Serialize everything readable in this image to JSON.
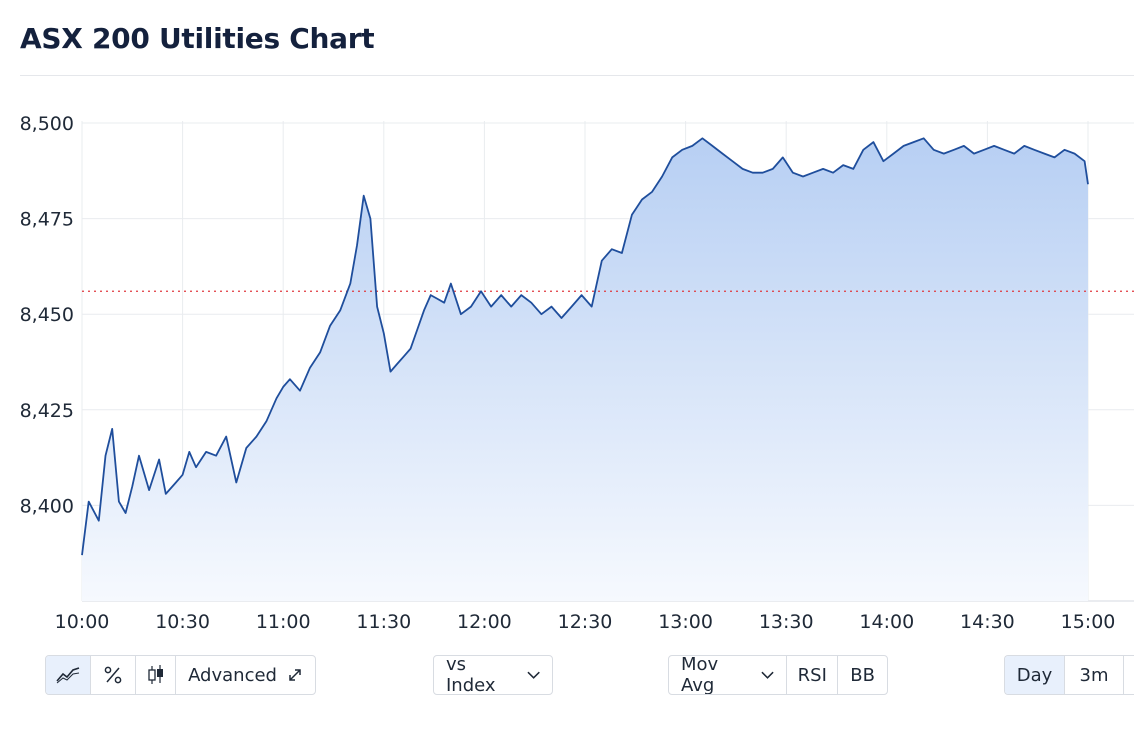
{
  "title": "ASX 200 Utilities Chart",
  "colors": {
    "line": "#1f4e9c",
    "fill_top": "#b7cff3",
    "fill_bottom": "#f6f9fe",
    "reference": "#e0393e",
    "grid": "#e9ecef"
  },
  "chart_data": {
    "type": "area",
    "title": "ASX 200 Utilities Chart",
    "xlabel": "",
    "ylabel": "",
    "ylim": [
      8375,
      8500
    ],
    "xlim": [
      "10:00",
      "15:00"
    ],
    "y_ticks": [
      "8,400",
      "8,425",
      "8,450",
      "8,475",
      "8,500"
    ],
    "x_ticks": [
      "10:00",
      "10:30",
      "11:00",
      "11:30",
      "12:00",
      "12:30",
      "13:00",
      "13:30",
      "14:00",
      "14:30",
      "15:00"
    ],
    "grid": true,
    "reference_line": {
      "value": 8456,
      "style": "dotted"
    },
    "series": [
      {
        "x": [
          "10:00",
          "10:02",
          "10:05",
          "10:07",
          "10:09",
          "10:11",
          "10:13",
          "10:15",
          "10:17",
          "10:20",
          "10:23",
          "10:25",
          "10:28",
          "10:30",
          "10:32",
          "10:34",
          "10:37",
          "10:40",
          "10:43",
          "10:46",
          "10:49",
          "10:52",
          "10:55",
          "10:58",
          "11:00",
          "11:02",
          "11:05",
          "11:08",
          "11:11",
          "11:14",
          "11:17",
          "11:20",
          "11:22",
          "11:24",
          "11:26",
          "11:28",
          "11:30",
          "11:32",
          "11:34",
          "11:36",
          "11:38",
          "11:40",
          "11:42",
          "11:44",
          "11:46",
          "11:48",
          "11:50",
          "11:53",
          "11:56",
          "11:59",
          "12:02",
          "12:05",
          "12:08",
          "12:11",
          "12:14",
          "12:17",
          "12:20",
          "12:23",
          "12:26",
          "12:29",
          "12:32",
          "12:35",
          "12:38",
          "12:41",
          "12:44",
          "12:47",
          "12:50",
          "12:53",
          "12:56",
          "12:59",
          "13:02",
          "13:05",
          "13:08",
          "13:11",
          "13:14",
          "13:17",
          "13:20",
          "13:23",
          "13:26",
          "13:29",
          "13:32",
          "13:35",
          "13:38",
          "13:41",
          "13:44",
          "13:47",
          "13:50",
          "13:53",
          "13:56",
          "13:59",
          "14:02",
          "14:05",
          "14:08",
          "14:11",
          "14:14",
          "14:17",
          "14:20",
          "14:23",
          "14:26",
          "14:29",
          "14:32",
          "14:35",
          "14:38",
          "14:41",
          "14:44",
          "14:47",
          "14:50",
          "14:53",
          "14:56",
          "14:59",
          "15:00"
        ],
        "values": [
          8387,
          8401,
          8396,
          8413,
          8420,
          8401,
          8398,
          8405,
          8413,
          8404,
          8412,
          8403,
          8406,
          8408,
          8414,
          8410,
          8414,
          8413,
          8418,
          8406,
          8415,
          8418,
          8422,
          8428,
          8431,
          8433,
          8430,
          8436,
          8440,
          8447,
          8451,
          8458,
          8468,
          8481,
          8475,
          8452,
          8445,
          8435,
          8437,
          8439,
          8441,
          8446,
          8451,
          8455,
          8454,
          8453,
          8458,
          8450,
          8452,
          8456,
          8452,
          8455,
          8452,
          8455,
          8453,
          8450,
          8452,
          8449,
          8452,
          8455,
          8452,
          8464,
          8467,
          8466,
          8476,
          8480,
          8482,
          8486,
          8491,
          8493,
          8494,
          8496,
          8494,
          8492,
          8490,
          8488,
          8487,
          8487,
          8488,
          8491,
          8487,
          8486,
          8487,
          8488,
          8487,
          8489,
          8488,
          8493,
          8495,
          8490,
          8492,
          8494,
          8495,
          8496,
          8493,
          8492,
          8493,
          8494,
          8492,
          8493,
          8494,
          8493,
          8492,
          8494,
          8493,
          8492,
          8491,
          8493,
          8492,
          8490,
          8484
        ]
      }
    ]
  },
  "controls": {
    "advanced_label": "Advanced",
    "compare_label": "vs Index",
    "indicators": [
      "Mov Avg",
      "RSI",
      "BB"
    ],
    "ranges": [
      "Day",
      "3m"
    ],
    "icons": [
      "line-chart-icon",
      "percent-icon",
      "candlestick-icon",
      "expand-icon",
      "chevron-down-icon"
    ]
  }
}
